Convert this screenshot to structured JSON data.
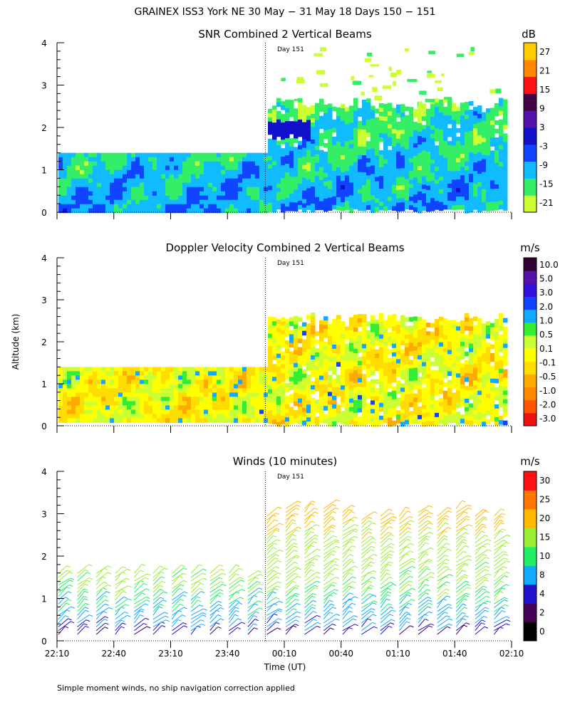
{
  "figure": {
    "title": "GRAINEX ISS3 York NE  30 May − 31 May 18 Days 150 − 151",
    "ylabel": "Altitude (km)",
    "xlabel": "Time (UT)",
    "footnote": "Simple moment winds, no ship navigation correction applied",
    "day_marker_label": "Day 151",
    "x_tick_labels": [
      "22:10",
      "22:40",
      "23:10",
      "23:40",
      "00:10",
      "00:40",
      "01:10",
      "01:40",
      "02:10"
    ],
    "y_tick_labels": [
      "0",
      "1",
      "2",
      "3",
      "4"
    ]
  },
  "chart_data": [
    {
      "type": "heatmap",
      "title": "SNR Combined 2 Vertical Beams",
      "xlabel": "Time (UT)",
      "ylabel": "Altitude (km)",
      "xlim_minutes": [
        0,
        240
      ],
      "ylim": [
        0,
        4
      ],
      "day_boundary_minutes": 110,
      "colorbar": {
        "unit": "dB",
        "tick_labels": [
          "27",
          "21",
          "15",
          "9",
          "3",
          "-3",
          "-9",
          "-15",
          "-21"
        ],
        "colors": [
          "#ccff33",
          "#33ee66",
          "#11bbff",
          "#1144ff",
          "#1111cc",
          "#5511aa",
          "#440044",
          "#ff1111",
          "#ff8800",
          "#ffcc00"
        ]
      },
      "data_top_km_before_boundary": 1.4,
      "data_top_km_after_boundary": 2.6,
      "sparse_echo_top_km": 4.0
    },
    {
      "type": "heatmap",
      "title": "Doppler Velocity Combined 2 Vertical Beams",
      "xlabel": "Time (UT)",
      "ylabel": "Altitude (km)",
      "xlim_minutes": [
        0,
        240
      ],
      "ylim": [
        0,
        4
      ],
      "day_boundary_minutes": 110,
      "colorbar": {
        "unit": "m/s",
        "tick_labels": [
          "10.0",
          "5.0",
          "3.0",
          "2.0",
          "1.0",
          "0.5",
          "0.1",
          "-0.1",
          "-0.5",
          "-1.0",
          "-2.0",
          "-3.0"
        ],
        "colors": [
          "#ee1111",
          "#ff5500",
          "#ff8800",
          "#ffaa00",
          "#ffdd00",
          "#ffff00",
          "#ccff33",
          "#33ee33",
          "#11aaff",
          "#1144ff",
          "#3311dd",
          "#5511aa",
          "#330033"
        ]
      },
      "data_top_km_before_boundary": 1.4,
      "data_top_km_after_boundary": 2.6
    },
    {
      "type": "scatter",
      "title": "Winds (10 minutes)",
      "xlabel": "Time (UT)",
      "ylabel": "Altitude (km)",
      "xlim_minutes": [
        0,
        240
      ],
      "ylim": [
        0,
        4
      ],
      "day_boundary_minutes": 110,
      "colorbar": {
        "unit": "m/s",
        "tick_labels": [
          "30",
          "25",
          "20",
          "15",
          "10",
          "8",
          "4",
          "2",
          "0"
        ],
        "colors": [
          "#000000",
          "#440055",
          "#2211cc",
          "#11aaff",
          "#22ee66",
          "#99ee33",
          "#ffbb00",
          "#ff7700",
          "#ff1111"
        ]
      },
      "wind_profile_times_minutes": [
        0,
        10,
        20,
        30,
        40,
        50,
        60,
        70,
        80,
        90,
        100,
        110,
        120,
        130,
        140,
        150,
        160,
        170,
        180,
        190,
        200,
        210,
        220,
        230
      ],
      "profile_top_km": [
        1.6,
        1.6,
        1.6,
        1.65,
        1.65,
        1.6,
        1.6,
        1.65,
        1.6,
        1.6,
        1.55,
        3.0,
        3.2,
        3.2,
        3.2,
        3.1,
        2.9,
        3.0,
        3.0,
        3.1,
        3.0,
        3.2,
        3.0,
        3.0
      ],
      "speed_by_altitude": {
        "altitude_km": [
          0.2,
          0.6,
          1.0,
          1.4,
          2.0,
          2.6,
          3.0
        ],
        "speed_ms": [
          3,
          7,
          9,
          11,
          12,
          15,
          18
        ]
      }
    }
  ]
}
